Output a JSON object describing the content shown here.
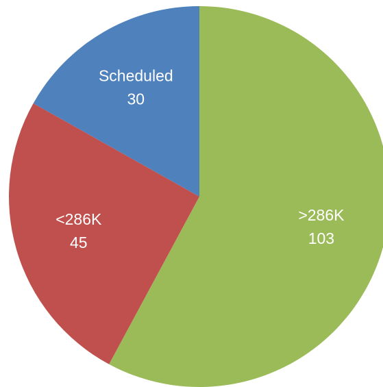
{
  "chart_data": {
    "type": "pie",
    "categories": [
      ">286K",
      "<286K",
      "Scheduled"
    ],
    "values": [
      103,
      45,
      30
    ],
    "colors": [
      "#9bbb59",
      "#c0504d",
      "#4f81bd"
    ]
  }
}
